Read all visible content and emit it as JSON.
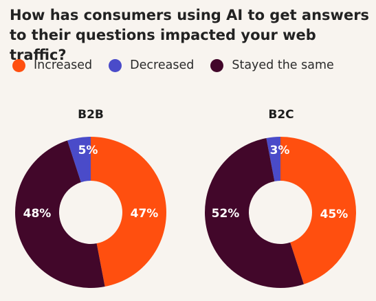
{
  "title": "How has consumers using AI to get answers to their questions impacted your web traffic?",
  "legend": [
    {
      "label": "Increased",
      "color": "#ff4f0f"
    },
    {
      "label": "Decreased",
      "color": "#4a4bc9"
    },
    {
      "label": "Stayed the same",
      "color": "#42072a"
    }
  ],
  "chart_data": [
    {
      "type": "pie",
      "title": "B2B",
      "categories": [
        "Increased",
        "Decreased",
        "Stayed the same"
      ],
      "values": [
        47,
        5,
        48
      ],
      "labels": [
        "47%",
        "5%",
        "48%"
      ],
      "colors": [
        "#ff4f0f",
        "#4a4bc9",
        "#42072a"
      ]
    },
    {
      "type": "pie",
      "title": "B2C",
      "categories": [
        "Increased",
        "Decreased",
        "Stayed the same"
      ],
      "values": [
        45,
        3,
        52
      ],
      "labels": [
        "45%",
        "3%",
        "52%"
      ],
      "colors": [
        "#ff4f0f",
        "#4a4bc9",
        "#42072a"
      ]
    }
  ]
}
